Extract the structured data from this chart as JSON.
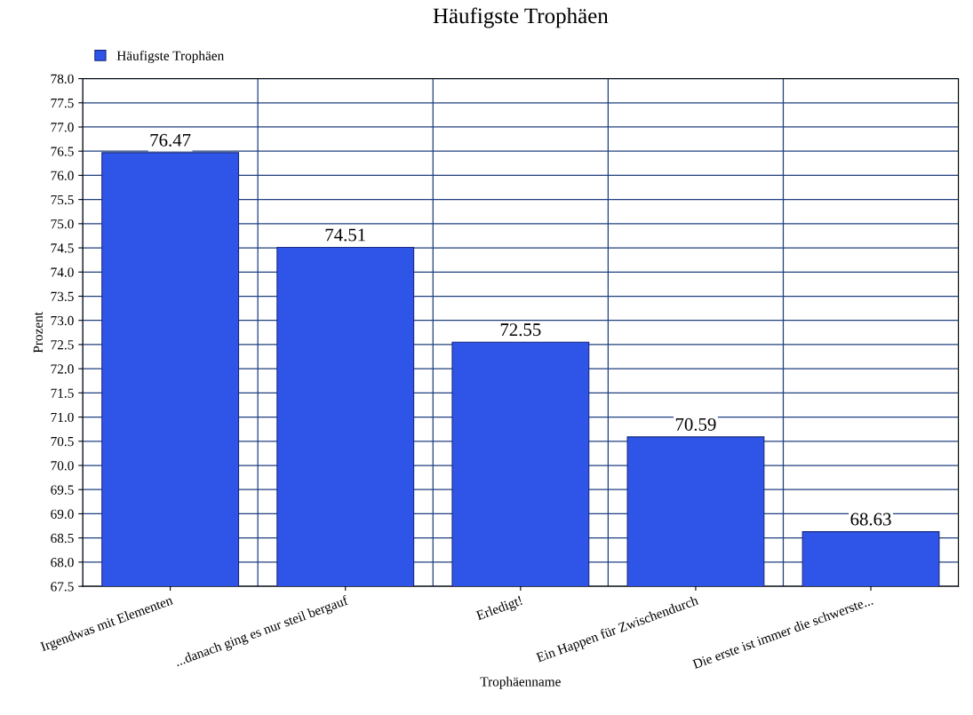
{
  "chart_data": {
    "type": "bar",
    "title": "Häufigste Trophäen",
    "xlabel": "Trophäenname",
    "ylabel": "Prozent",
    "categories": [
      "Irgendwas mit Elementen",
      "...danach ging es nur steil bergauf",
      "Erledigt!",
      "Ein Happen für Zwischendurch",
      "Die erste ist immer die schwerste..."
    ],
    "series": [
      {
        "name": "Häufigste Trophäen",
        "color": "#2f55e8",
        "values": [
          76.47,
          74.51,
          72.55,
          70.59,
          68.63
        ]
      }
    ],
    "ylim": [
      67.5,
      78.0
    ],
    "yticks": [
      {
        "value": 67.5,
        "label": "67.5"
      },
      {
        "value": 68.0,
        "label": "68.0"
      },
      {
        "value": 68.5,
        "label": "68.5"
      },
      {
        "value": 69.0,
        "label": "69.0"
      },
      {
        "value": 69.5,
        "label": "69.5"
      },
      {
        "value": 70.0,
        "label": "70.0"
      },
      {
        "value": 70.5,
        "label": "70.5"
      },
      {
        "value": 71.0,
        "label": "71.0"
      },
      {
        "value": 71.5,
        "label": "71.5"
      },
      {
        "value": 72.0,
        "label": "72.0"
      },
      {
        "value": 72.5,
        "label": "72.5"
      },
      {
        "value": 73.0,
        "label": "73.0"
      },
      {
        "value": 73.5,
        "label": "73.5"
      },
      {
        "value": 74.0,
        "label": "74.0"
      },
      {
        "value": 74.5,
        "label": "74.5"
      },
      {
        "value": 75.0,
        "label": "75.0"
      },
      {
        "value": 75.5,
        "label": "75.5"
      },
      {
        "value": 76.0,
        "label": "76.0"
      },
      {
        "value": 76.5,
        "label": "76.5"
      },
      {
        "value": 77.0,
        "label": "77.0"
      },
      {
        "value": 77.5,
        "label": "77.5"
      },
      {
        "value": 78.0,
        "label": "78.0"
      }
    ],
    "grid": true,
    "legend": "top left",
    "data_labels": true
  }
}
